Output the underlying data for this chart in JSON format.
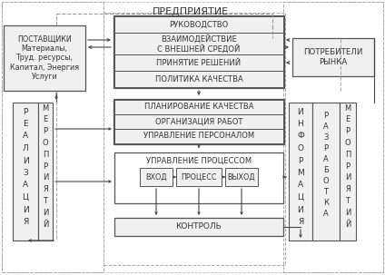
{
  "bg_color": "#ffffff",
  "text_color": "#333333",
  "edge_color": "#555555",
  "dash_color": "#999999",
  "arrow_color": "#444444",
  "title": "ПРЕДПРИЯТИЕ",
  "supplier_text": "ПОСТАВЩИКИ\nМатериалы,\nТруд. ресурсы,\nКапитал, Энергия\nУслуги",
  "consumer_text": "ПОТРЕБИТЕЛИ\nРЫНКА",
  "mgmt_labels": [
    "РУКОВОДСТВО",
    "ВЗАИМОДЕЙСТВИЕ\nС ВНЕШНЕЙ СРЕДОЙ",
    "ПРИНЯТИЕ РЕШЕНИЙ",
    "ПОЛИТИКА КАЧЕСТВА"
  ],
  "mid_labels": [
    "ПЛАНИРОВАНИЕ КАЧЕСТВА",
    "ОРГАНИЗАЦИЯ РАБОТ",
    "УПРАВЛЕНИЕ ПЕРСОНАЛОМ"
  ],
  "proc_title": "УПРАВЛЕНИЕ ПРОЦЕССОМ",
  "proc_sub": [
    "ВХОД",
    "ПРОЦЕСС",
    "ВЫХОД"
  ],
  "ctrl_label": "КОНТРОЛЬ",
  "real_chars": [
    "Р",
    "Е",
    "А",
    "Л",
    "И",
    "З",
    "А",
    "Ц",
    "И",
    "Я"
  ],
  "mero_chars": [
    "М",
    "Е",
    "Р",
    "О",
    "П",
    "Р",
    "И",
    "Я",
    "Т",
    "И",
    "Й"
  ],
  "info_chars": [
    "И",
    "Н",
    "Ф",
    "О",
    "Р",
    "М",
    "А",
    "Ц",
    "И",
    "Я"
  ],
  "razr_chars": [
    "Р",
    "А",
    "З",
    "Р",
    "А",
    "Б",
    "О",
    "Т",
    "К",
    "А"
  ]
}
